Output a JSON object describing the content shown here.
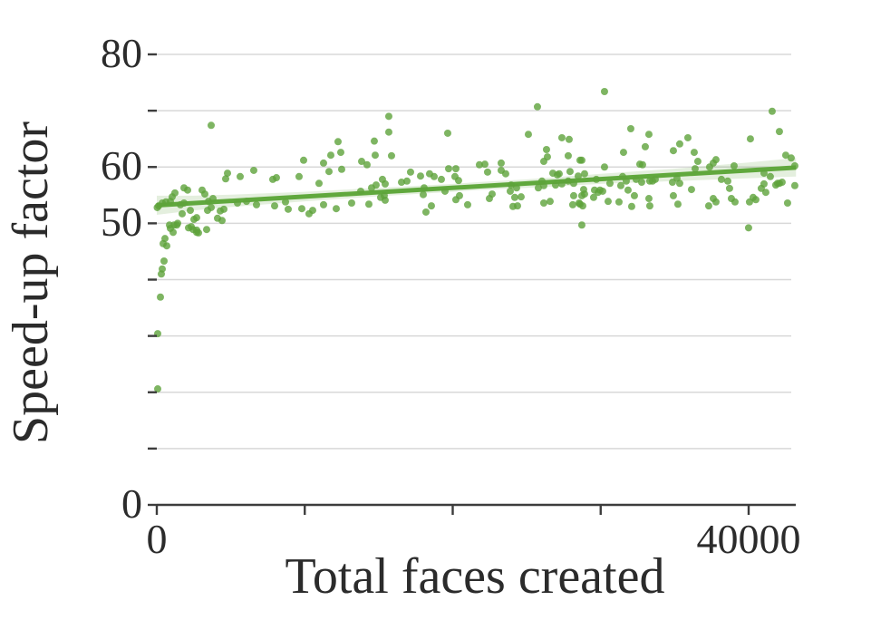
{
  "chart_data": {
    "type": "scatter",
    "title": "",
    "xlabel": "Total faces created",
    "ylabel": "Speed-up factor",
    "xlim": [
      0,
      43200
    ],
    "ylim": [
      0,
      80
    ],
    "grid": "horizontal",
    "legend": "none",
    "xticks": [
      {
        "value": 0,
        "label": "0"
      },
      {
        "value": 10000,
        "label": ""
      },
      {
        "value": 20000,
        "label": ""
      },
      {
        "value": 30000,
        "label": ""
      },
      {
        "value": 40000,
        "label": "40000"
      }
    ],
    "yticks": [
      {
        "value": 0,
        "label": "0"
      },
      {
        "value": 10,
        "label": ""
      },
      {
        "value": 20,
        "label": ""
      },
      {
        "value": 30,
        "label": ""
      },
      {
        "value": 40,
        "label": ""
      },
      {
        "value": 50,
        "label": "50"
      },
      {
        "value": 60,
        "label": "60"
      },
      {
        "value": 70,
        "label": ""
      },
      {
        "value": 80,
        "label": "80"
      }
    ],
    "colors": {
      "point": "#5EA23B",
      "point_opacity": 0.8,
      "regression_line": "#60A83D",
      "confidence_band": "#5EA23B",
      "band_opacity": 0.17,
      "grid": "#D8D8D8",
      "axis": "#3C3C3C",
      "text": "#2B2B2B",
      "background": "#FFFFFF"
    },
    "regression": {
      "x1": 0,
      "y1": 53.2,
      "x2": 43200,
      "y2": 59.9
    },
    "confidence_band": {
      "x": [
        0,
        2500,
        5000,
        10000,
        15000,
        20000,
        21600,
        25000,
        30000,
        35000,
        40000,
        43200
      ],
      "upper": [
        54.9,
        54.9,
        55.1,
        55.6,
        56.3,
        57.0,
        57.3,
        57.8,
        58.8,
        59.7,
        60.8,
        61.6
      ],
      "lower": [
        51.5,
        52.3,
        52.9,
        53.9,
        54.8,
        55.6,
        55.9,
        56.3,
        57.0,
        57.5,
        58.0,
        58.3
      ]
    },
    "points": [
      [
        61,
        30.4
      ],
      [
        61,
        20.6
      ],
      [
        245,
        36.9
      ],
      [
        306,
        41.0
      ],
      [
        368,
        41.9
      ],
      [
        490,
        43.3
      ],
      [
        429,
        46.4
      ],
      [
        551,
        47.3
      ],
      [
        674,
        46.0
      ],
      [
        858,
        49.7
      ],
      [
        919,
        49.1
      ],
      [
        1103,
        48.4
      ],
      [
        1348,
        49.7
      ],
      [
        2328,
        49.4
      ],
      [
        2695,
        48.4
      ],
      [
        30,
        52.8
      ],
      [
        123,
        53.1
      ],
      [
        368,
        53.6
      ],
      [
        613,
        53.8
      ],
      [
        919,
        53.9
      ],
      [
        1041,
        54.7
      ],
      [
        1225,
        55.4
      ],
      [
        1593,
        53.3
      ],
      [
        1715,
        51.7
      ],
      [
        1838,
        56.3
      ],
      [
        1838,
        53.6
      ],
      [
        2083,
        55.9
      ],
      [
        2144,
        49.2
      ],
      [
        2266,
        52.3
      ],
      [
        2450,
        48.9
      ],
      [
        2511,
        50.7
      ],
      [
        2695,
        51.0
      ],
      [
        2695,
        48.8
      ],
      [
        2818,
        48.3
      ],
      [
        3063,
        55.9
      ],
      [
        3246,
        55.2
      ],
      [
        3369,
        48.9
      ],
      [
        3430,
        52.3
      ],
      [
        3491,
        53.9
      ],
      [
        3675,
        52.8
      ],
      [
        3675,
        67.4
      ],
      [
        3798,
        54.4
      ],
      [
        4104,
        50.9
      ],
      [
        4288,
        52.2
      ],
      [
        4410,
        50.5
      ],
      [
        4533,
        52.5
      ],
      [
        1164,
        49.7
      ],
      [
        1409,
        50.0
      ],
      [
        4655,
        57.9
      ],
      [
        4778,
        58.9
      ],
      [
        5451,
        53.6
      ],
      [
        5635,
        58.3
      ],
      [
        6064,
        53.9
      ],
      [
        6553,
        59.4
      ],
      [
        6738,
        53.3
      ],
      [
        7840,
        57.8
      ],
      [
        7963,
        53.1
      ],
      [
        8085,
        58.1
      ],
      [
        8698,
        53.8
      ],
      [
        8881,
        52.5
      ],
      [
        9616,
        58.3
      ],
      [
        9800,
        52.6
      ],
      [
        9923,
        61.2
      ],
      [
        10290,
        51.7
      ],
      [
        10535,
        52.3
      ],
      [
        10964,
        57.1
      ],
      [
        11270,
        53.3
      ],
      [
        11270,
        60.7
      ],
      [
        11638,
        59.2
      ],
      [
        11760,
        62.1
      ],
      [
        12128,
        52.6
      ],
      [
        12250,
        64.5
      ],
      [
        12434,
        62.6
      ],
      [
        12495,
        59.6
      ],
      [
        13169,
        53.6
      ],
      [
        13781,
        55.7
      ],
      [
        13843,
        61.0
      ],
      [
        25725,
        70.7
      ],
      [
        15680,
        69.0
      ],
      [
        15680,
        66.2
      ],
      [
        19661,
        66.0
      ],
      [
        25113,
        65.8
      ],
      [
        14700,
        64.6
      ],
      [
        27378,
        65.2
      ],
      [
        27868,
        64.9
      ],
      [
        14761,
        62.1
      ],
      [
        15864,
        62.0
      ],
      [
        26338,
        63.1
      ],
      [
        26399,
        61.8
      ],
      [
        27807,
        62.0
      ],
      [
        28726,
        61.2
      ],
      [
        21805,
        60.4
      ],
      [
        22173,
        60.5
      ],
      [
        23275,
        60.7
      ],
      [
        23275,
        59.4
      ],
      [
        22356,
        59.1
      ],
      [
        17150,
        59.1
      ],
      [
        17824,
        58.4
      ],
      [
        18436,
        58.8
      ],
      [
        19723,
        59.7
      ],
      [
        20213,
        59.7
      ],
      [
        18743,
        58.3
      ],
      [
        16538,
        57.3
      ],
      [
        16905,
        57.5
      ],
      [
        15251,
        57.8
      ],
      [
        15435,
        57.0
      ],
      [
        19233,
        57.8
      ],
      [
        20151,
        58.3
      ],
      [
        20396,
        57.6
      ],
      [
        26766,
        58.9
      ],
      [
        27195,
        58.8
      ],
      [
        26031,
        57.5
      ],
      [
        27807,
        57.5
      ],
      [
        28175,
        57.1
      ],
      [
        14210,
        60.4
      ],
      [
        14516,
        56.3
      ],
      [
        14823,
        56.8
      ],
      [
        14333,
        53.4
      ],
      [
        15129,
        54.6
      ],
      [
        15435,
        54.1
      ],
      [
        15374,
        54.9
      ],
      [
        18008,
        55.1
      ],
      [
        18069,
        56.3
      ],
      [
        18191,
        52.0
      ],
      [
        18559,
        53.1
      ],
      [
        19478,
        55.7
      ],
      [
        20213,
        54.2
      ],
      [
        20458,
        54.9
      ],
      [
        21009,
        53.3
      ],
      [
        22479,
        54.4
      ],
      [
        22663,
        55.2
      ],
      [
        23888,
        55.7
      ],
      [
        23949,
        56.8
      ],
      [
        24194,
        54.6
      ],
      [
        24071,
        53.0
      ],
      [
        24378,
        53.1
      ],
      [
        26154,
        53.6
      ],
      [
        26583,
        53.9
      ],
      [
        25786,
        56.3
      ],
      [
        26154,
        56.7
      ],
      [
        26950,
        56.8
      ],
      [
        27378,
        57.0
      ],
      [
        28175,
        54.9
      ],
      [
        28542,
        53.6
      ],
      [
        28787,
        53.1
      ],
      [
        28726,
        49.7
      ],
      [
        26154,
        61.0
      ],
      [
        27072,
        58.6
      ],
      [
        27929,
        59.2
      ],
      [
        28481,
        58.4
      ],
      [
        23581,
        58.8
      ],
      [
        24316,
        56.3
      ],
      [
        24623,
        54.7
      ],
      [
        28113,
        53.3
      ],
      [
        28910,
        55.2
      ],
      [
        29523,
        54.6
      ],
      [
        29952,
        55.9
      ],
      [
        30503,
        53.9
      ],
      [
        30258,
        73.4
      ],
      [
        41589,
        69.9
      ],
      [
        32034,
        66.8
      ],
      [
        33259,
        65.8
      ],
      [
        42079,
        66.3
      ],
      [
        40119,
        65.0
      ],
      [
        35893,
        65.2
      ],
      [
        35341,
        64.1
      ],
      [
        33014,
        63.6
      ],
      [
        34913,
        62.9
      ],
      [
        36321,
        62.6
      ],
      [
        31544,
        62.6
      ],
      [
        42508,
        62.1
      ],
      [
        37608,
        60.7
      ],
      [
        37791,
        61.3
      ],
      [
        36566,
        61.0
      ],
      [
        30258,
        60.0
      ],
      [
        28604,
        61.2
      ],
      [
        32646,
        60.5
      ],
      [
        32830,
        60.4
      ],
      [
        28910,
        58.8
      ],
      [
        29706,
        57.8
      ],
      [
        30625,
        57.1
      ],
      [
        31483,
        58.3
      ],
      [
        31728,
        57.5
      ],
      [
        32401,
        57.8
      ],
      [
        33320,
        57.5
      ],
      [
        33688,
        57.8
      ],
      [
        35158,
        58.0
      ],
      [
        35341,
        57.1
      ],
      [
        36383,
        59.7
      ],
      [
        37363,
        60.0
      ],
      [
        39016,
        60.2
      ],
      [
        41038,
        58.9
      ],
      [
        41466,
        58.3
      ],
      [
        41956,
        57.1
      ],
      [
        42263,
        57.3
      ],
      [
        42875,
        61.6
      ],
      [
        43120,
        60.2
      ],
      [
        28849,
        56.0
      ],
      [
        28726,
        54.9
      ],
      [
        28604,
        53.4
      ],
      [
        29584,
        55.9
      ],
      [
        29829,
        55.5
      ],
      [
        30135,
        55.7
      ],
      [
        31360,
        56.7
      ],
      [
        31850,
        55.9
      ],
      [
        31238,
        53.8
      ],
      [
        32095,
        53.0
      ],
      [
        32279,
        54.9
      ],
      [
        32769,
        57.3
      ],
      [
        33504,
        57.5
      ],
      [
        33259,
        54.4
      ],
      [
        33320,
        53.1
      ],
      [
        34851,
        57.3
      ],
      [
        34913,
        54.9
      ],
      [
        35219,
        53.4
      ],
      [
        36138,
        56.0
      ],
      [
        37301,
        53.1
      ],
      [
        37608,
        54.4
      ],
      [
        37791,
        53.8
      ],
      [
        38159,
        57.8
      ],
      [
        38588,
        57.5
      ],
      [
        38710,
        56.2
      ],
      [
        38833,
        54.4
      ],
      [
        39078,
        53.8
      ],
      [
        39996,
        49.2
      ],
      [
        40058,
        53.8
      ],
      [
        40303,
        54.6
      ],
      [
        40486,
        54.2
      ],
      [
        40854,
        56.2
      ],
      [
        41038,
        57.0
      ],
      [
        41160,
        55.5
      ],
      [
        41834,
        56.8
      ],
      [
        42079,
        57.1
      ],
      [
        42630,
        53.6
      ],
      [
        43120,
        56.7
      ]
    ]
  }
}
